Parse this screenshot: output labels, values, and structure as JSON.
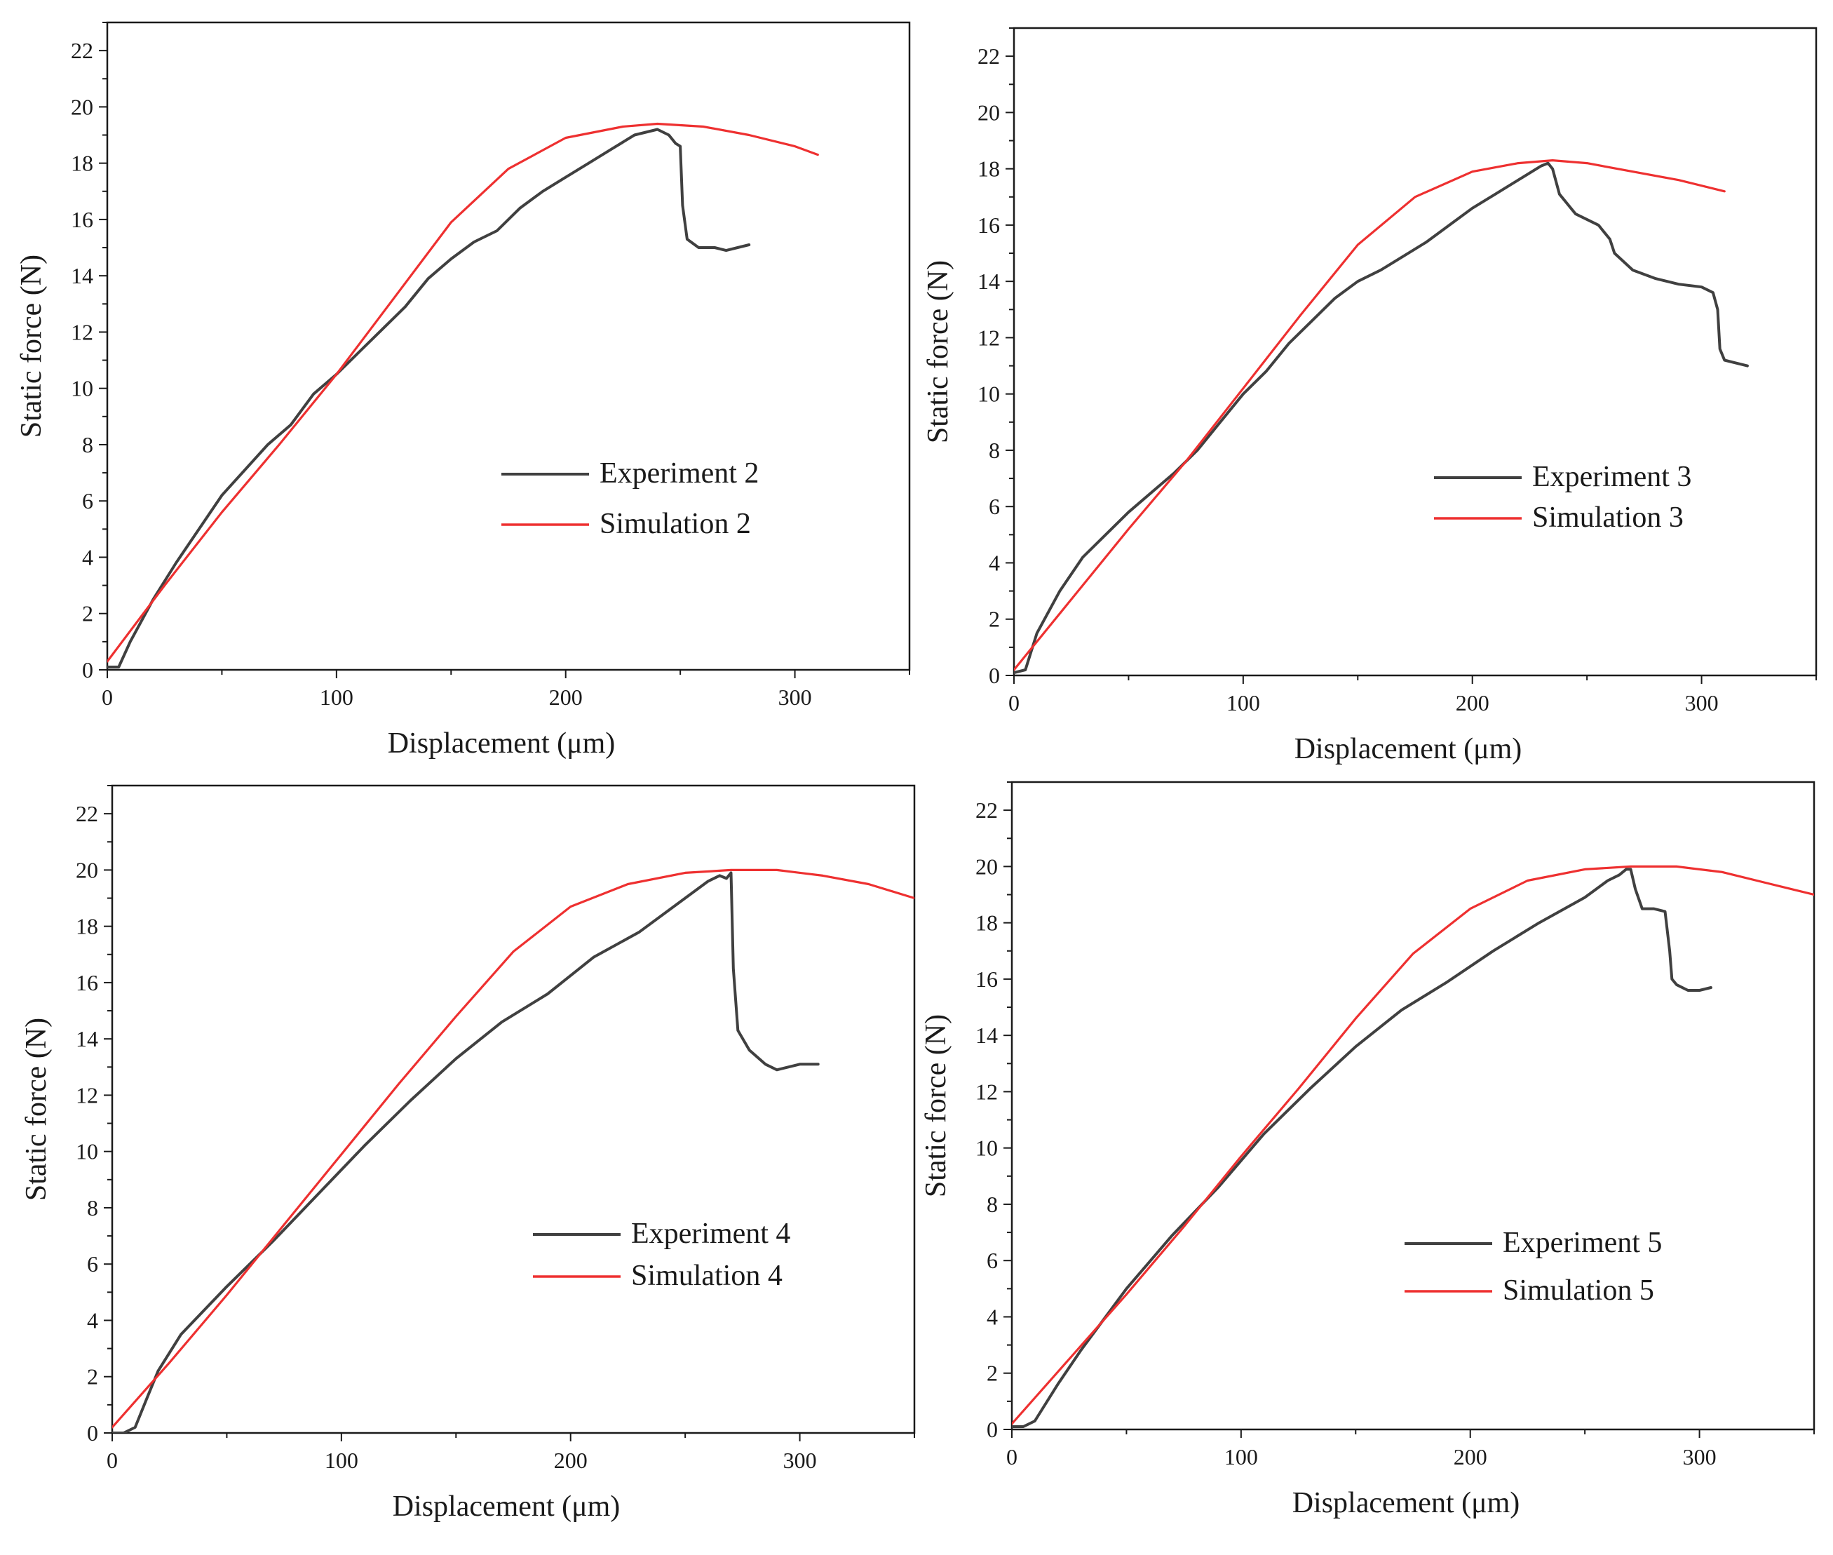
{
  "figure": {
    "colors": {
      "experiment": "#404040",
      "simulation": "#ee3030",
      "axis": "#1a1a1a"
    }
  },
  "chart_data": [
    {
      "type": "line",
      "panel": "top-left",
      "title": "",
      "xlabel": "Displacement (μm)",
      "ylabel": "Static force  (N)",
      "xlim": [
        0,
        350
      ],
      "ylim": [
        0,
        23
      ],
      "xticks": [
        0,
        100,
        200,
        300
      ],
      "yticks": [
        0,
        2,
        4,
        6,
        8,
        10,
        12,
        14,
        16,
        18,
        20,
        22
      ],
      "legend_position": "lower-right",
      "series": [
        {
          "name": "Experiment 2",
          "x": [
            0,
            5,
            10,
            20,
            30,
            50,
            70,
            80,
            90,
            100,
            110,
            120,
            130,
            140,
            150,
            160,
            170,
            180,
            190,
            200,
            210,
            220,
            230,
            235,
            240,
            245,
            248,
            250,
            251,
            253,
            258,
            265,
            270,
            275,
            280
          ],
          "y": [
            0.1,
            0.1,
            1.0,
            2.5,
            3.8,
            6.2,
            8.0,
            8.7,
            9.8,
            10.5,
            11.3,
            12.1,
            12.9,
            13.9,
            14.6,
            15.2,
            15.6,
            16.4,
            17.0,
            17.5,
            18.0,
            18.5,
            19.0,
            19.1,
            19.2,
            19.0,
            18.7,
            18.6,
            16.5,
            15.3,
            15.0,
            15.0,
            14.9,
            15.0,
            15.1
          ]
        },
        {
          "name": "Simulation 2",
          "x": [
            0,
            25,
            50,
            75,
            100,
            125,
            150,
            175,
            200,
            225,
            240,
            260,
            280,
            300,
            310
          ],
          "y": [
            0.3,
            3.0,
            5.6,
            8.0,
            10.5,
            13.2,
            15.9,
            17.8,
            18.9,
            19.3,
            19.4,
            19.3,
            19.0,
            18.6,
            18.3
          ]
        }
      ]
    },
    {
      "type": "line",
      "panel": "top-right",
      "title": "",
      "xlabel": "Displacement (μm)",
      "ylabel": "Static force  (N)",
      "xlim": [
        0,
        350
      ],
      "ylim": [
        0,
        23
      ],
      "xticks": [
        0,
        100,
        200,
        300
      ],
      "yticks": [
        0,
        2,
        4,
        6,
        8,
        10,
        12,
        14,
        16,
        18,
        20,
        22
      ],
      "legend_position": "lower-right",
      "series": [
        {
          "name": "Experiment 3",
          "x": [
            0,
            5,
            10,
            20,
            30,
            50,
            70,
            80,
            90,
            100,
            110,
            120,
            130,
            140,
            150,
            160,
            170,
            180,
            190,
            200,
            210,
            220,
            230,
            233,
            235,
            238,
            245,
            255,
            260,
            262,
            270,
            280,
            290,
            300,
            305,
            307,
            308,
            310,
            315,
            320
          ],
          "y": [
            0.1,
            0.2,
            1.5,
            3.0,
            4.2,
            5.8,
            7.2,
            8.0,
            9.0,
            10.0,
            10.8,
            11.8,
            12.6,
            13.4,
            14.0,
            14.4,
            14.9,
            15.4,
            16.0,
            16.6,
            17.1,
            17.6,
            18.1,
            18.2,
            18.0,
            17.1,
            16.4,
            16.0,
            15.5,
            15.0,
            14.4,
            14.1,
            13.9,
            13.8,
            13.6,
            13.0,
            11.6,
            11.2,
            11.1,
            11.0
          ]
        },
        {
          "name": "Simulation 3",
          "x": [
            0,
            25,
            50,
            75,
            100,
            125,
            150,
            175,
            200,
            220,
            235,
            250,
            270,
            290,
            310
          ],
          "y": [
            0.2,
            2.7,
            5.2,
            7.6,
            10.2,
            12.8,
            15.3,
            17.0,
            17.9,
            18.2,
            18.3,
            18.2,
            17.9,
            17.6,
            17.2
          ]
        }
      ]
    },
    {
      "type": "line",
      "panel": "bottom-left",
      "title": "",
      "xlabel": "Displacement (μm)",
      "ylabel": "Static force  (N)",
      "xlim": [
        0,
        350
      ],
      "ylim": [
        0,
        23
      ],
      "xticks": [
        0,
        100,
        200,
        300
      ],
      "yticks": [
        0,
        2,
        4,
        6,
        8,
        10,
        12,
        14,
        16,
        18,
        20,
        22
      ],
      "legend_position": "lower-right",
      "series": [
        {
          "name": "Experiment 4",
          "x": [
            0,
            5,
            10,
            15,
            20,
            30,
            50,
            70,
            90,
            110,
            130,
            150,
            170,
            190,
            210,
            230,
            250,
            260,
            265,
            268,
            270,
            271,
            273,
            278,
            285,
            290,
            295,
            300,
            308
          ],
          "y": [
            0,
            0,
            0.2,
            1.2,
            2.2,
            3.5,
            5.2,
            6.8,
            8.5,
            10.2,
            11.8,
            13.3,
            14.6,
            15.6,
            16.9,
            17.8,
            19.0,
            19.6,
            19.8,
            19.7,
            19.9,
            16.5,
            14.3,
            13.6,
            13.1,
            12.9,
            13.0,
            13.1,
            13.1
          ]
        },
        {
          "name": "Simulation 4",
          "x": [
            0,
            25,
            50,
            75,
            100,
            125,
            150,
            175,
            200,
            225,
            250,
            270,
            290,
            310,
            330,
            350
          ],
          "y": [
            0.2,
            2.5,
            4.9,
            7.4,
            9.9,
            12.4,
            14.8,
            17.1,
            18.7,
            19.5,
            19.9,
            20.0,
            20.0,
            19.8,
            19.5,
            19.0
          ]
        }
      ]
    },
    {
      "type": "line",
      "panel": "bottom-right",
      "title": "",
      "xlabel": "Displacement (μm)",
      "ylabel": "Static force  (N)",
      "xlim": [
        0,
        350
      ],
      "ylim": [
        0,
        23
      ],
      "xticks": [
        0,
        100,
        200,
        300
      ],
      "yticks": [
        0,
        2,
        4,
        6,
        8,
        10,
        12,
        14,
        16,
        18,
        20,
        22
      ],
      "legend_position": "lower-right",
      "series": [
        {
          "name": "Experiment 5",
          "x": [
            0,
            5,
            10,
            20,
            30,
            50,
            70,
            90,
            110,
            130,
            150,
            170,
            190,
            210,
            230,
            250,
            260,
            265,
            268,
            270,
            272,
            275,
            280,
            285,
            287,
            288,
            290,
            295,
            300,
            305
          ],
          "y": [
            0.1,
            0.1,
            0.3,
            1.6,
            2.8,
            5.0,
            6.9,
            8.6,
            10.5,
            12.1,
            13.6,
            14.9,
            15.9,
            17.0,
            18.0,
            18.9,
            19.5,
            19.7,
            19.9,
            19.9,
            19.2,
            18.5,
            18.5,
            18.4,
            17.0,
            16.0,
            15.8,
            15.6,
            15.6,
            15.7
          ]
        },
        {
          "name": "Simulation 5",
          "x": [
            0,
            25,
            50,
            75,
            100,
            125,
            150,
            175,
            200,
            225,
            250,
            270,
            290,
            310,
            330,
            350
          ],
          "y": [
            0.2,
            2.5,
            4.8,
            7.2,
            9.7,
            12.1,
            14.6,
            16.9,
            18.5,
            19.5,
            19.9,
            20.0,
            20.0,
            19.8,
            19.4,
            19.0
          ]
        }
      ]
    }
  ]
}
